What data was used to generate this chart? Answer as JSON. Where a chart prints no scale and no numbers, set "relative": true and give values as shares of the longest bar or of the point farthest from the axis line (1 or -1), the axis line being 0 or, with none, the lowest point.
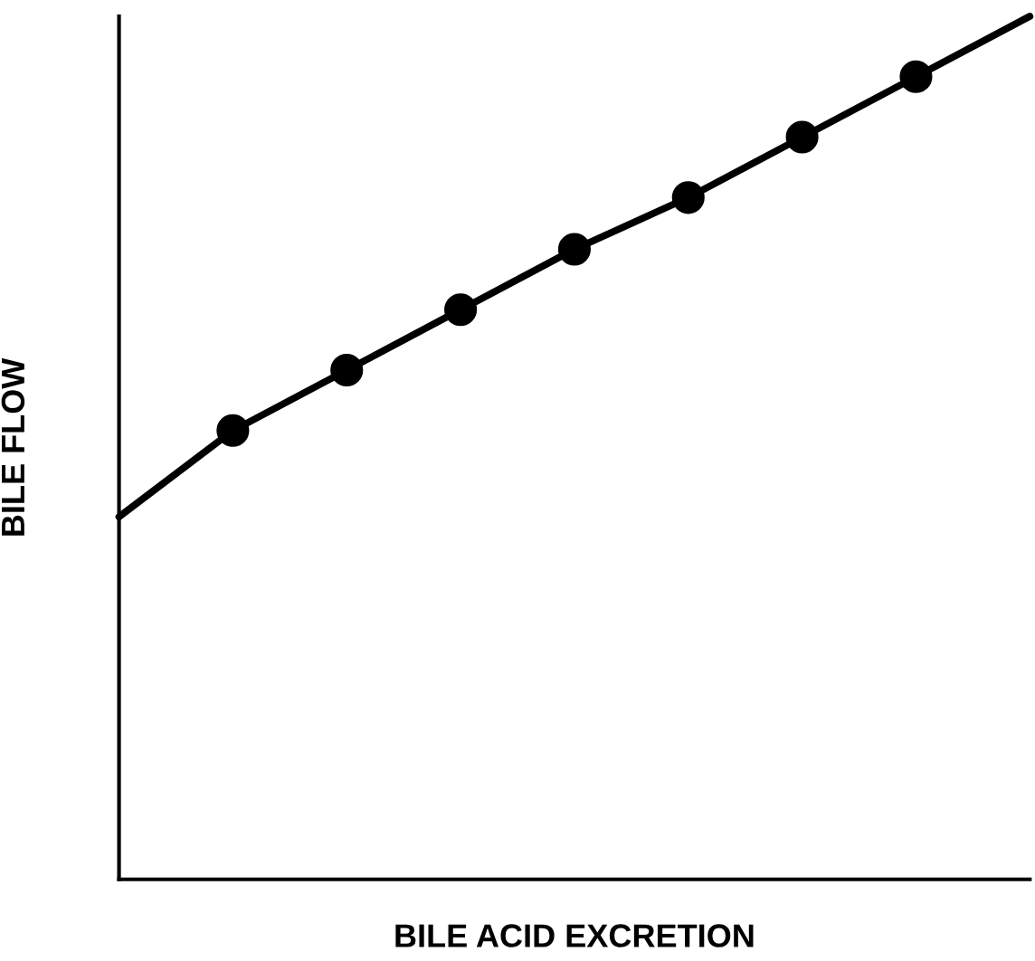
{
  "chart_data": {
    "type": "line",
    "relative": true,
    "xlabel": "BILE ACID EXCRETION",
    "ylabel": "BILE FLOW",
    "marker": "circle",
    "line_style": "solid",
    "categories": [
      null,
      null,
      null,
      null,
      null,
      null,
      null,
      null,
      null
    ],
    "series": [
      {
        "color": "#000000",
        "values": [
          0.42,
          0.52,
          0.59,
          0.66,
          0.73,
          0.79,
          0.86,
          0.93,
          1
        ]
      }
    ]
  }
}
